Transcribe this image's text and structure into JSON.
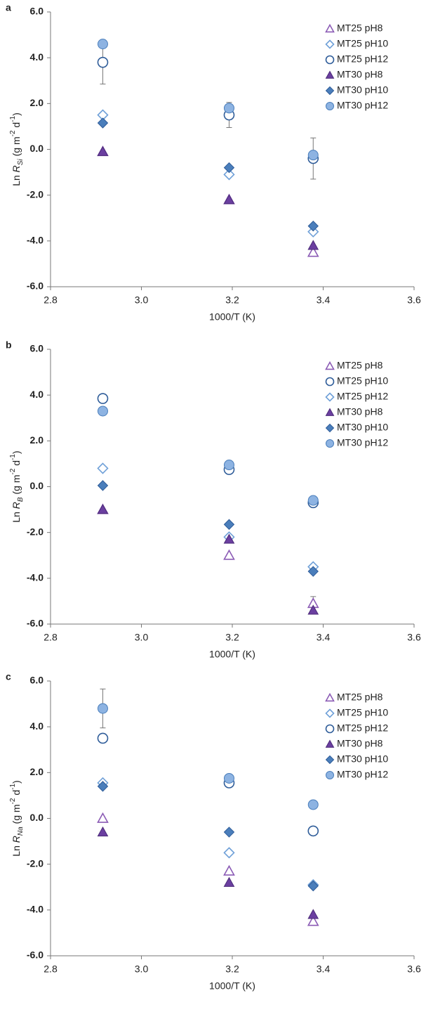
{
  "chart_data": [
    {
      "type": "scatter",
      "panel": "a",
      "xlabel": "1000/T (K)",
      "ylabel": [
        "Ln ",
        "R",
        "Si",
        " (g m",
        "-2",
        " d",
        "-1",
        ")"
      ],
      "x": [
        2.915,
        3.193,
        3.378
      ],
      "xlim": [
        2.8,
        3.6
      ],
      "xticks": [
        2.8,
        {
          "value": 3.0,
          "label": "3.0"
        },
        3.2,
        3.4,
        3.6
      ],
      "ylim": [
        -6,
        6
      ],
      "yticks": [
        {
          "value": -6,
          "label": "-6.0"
        },
        {
          "value": -4,
          "label": "-4.0"
        },
        {
          "value": -2,
          "label": "-2.0"
        },
        {
          "value": 0,
          "label": "0.0"
        },
        {
          "value": 2,
          "label": "2.0"
        },
        {
          "value": 4,
          "label": "4.0"
        },
        {
          "value": 6,
          "label": "6.0"
        }
      ],
      "legend": "upper right",
      "series": [
        {
          "name": "MT25 pH8",
          "color": "#8b5bb5",
          "marker": "triangle",
          "filled": false,
          "values": [
            -0.1,
            -2.2,
            -4.5
          ]
        },
        {
          "name": "MT25 pH10",
          "color": "#6fa0d8",
          "marker": "diamond",
          "filled": false,
          "values": [
            1.5,
            -1.1,
            -3.6
          ]
        },
        {
          "name": "MT25 pH12",
          "color": "#2e5c99",
          "marker": "circle",
          "filled": false,
          "values": [
            3.8,
            1.5,
            -0.4
          ],
          "errors": [
            0.95,
            0.55,
            0.9
          ]
        },
        {
          "name": "MT30 pH8",
          "color": "#6b3fa0",
          "marker": "triangle",
          "filled": true,
          "values": [
            -0.1,
            -2.2,
            -4.2
          ]
        },
        {
          "name": "MT30 pH10",
          "color": "#4a7ebb",
          "marker": "diamond",
          "filled": true,
          "values": [
            1.15,
            -0.8,
            -3.35
          ]
        },
        {
          "name": "MT30 pH12",
          "color": "#8db3e2",
          "marker": "circle",
          "filled": true,
          "values": [
            4.6,
            1.8,
            -0.25
          ]
        }
      ]
    },
    {
      "type": "scatter",
      "panel": "b",
      "xlabel": "1000/T (K)",
      "ylabel": [
        "Ln ",
        "R",
        "B",
        " (g m",
        "-2",
        " d",
        "-1",
        ")"
      ],
      "x": [
        2.915,
        3.193,
        3.378
      ],
      "xlim": [
        2.8,
        3.6
      ],
      "xticks": [
        2.8,
        {
          "value": 3.0,
          "label": "3.0"
        },
        3.2,
        3.4,
        3.6
      ],
      "ylim": [
        -6,
        6
      ],
      "yticks": [
        {
          "value": -6,
          "label": "-6.0"
        },
        {
          "value": -4,
          "label": "-4.0"
        },
        {
          "value": -2,
          "label": "-2.0"
        },
        {
          "value": 0,
          "label": "0.0"
        },
        {
          "value": 2,
          "label": "2.0"
        },
        {
          "value": 4,
          "label": "4.0"
        },
        {
          "value": 6,
          "label": "6.0"
        }
      ],
      "legend": "upper right",
      "series": [
        {
          "name": "MT25 pH8",
          "color": "#8b5bb5",
          "marker": "triangle",
          "filled": false,
          "values": [
            -1.0,
            -3.0,
            -5.1
          ],
          "errors": [
            null,
            null,
            0.3
          ]
        },
        {
          "name": "MT25 pH10",
          "color": "#2e5c99",
          "marker": "circle",
          "filled": false,
          "values": [
            3.85,
            0.75,
            -0.7
          ]
        },
        {
          "name": "MT25 pH12",
          "color": "#6fa0d8",
          "marker": "diamond",
          "filled": false,
          "values": [
            0.8,
            -2.2,
            -3.5
          ]
        },
        {
          "name": "MT30 pH8",
          "color": "#6b3fa0",
          "marker": "triangle",
          "filled": true,
          "values": [
            -1.0,
            -2.3,
            -5.4
          ]
        },
        {
          "name": "MT30 pH10",
          "color": "#4a7ebb",
          "marker": "diamond",
          "filled": true,
          "values": [
            0.05,
            -1.65,
            -3.7
          ]
        },
        {
          "name": "MT30 pH12",
          "color": "#8db3e2",
          "marker": "circle",
          "filled": true,
          "values": [
            3.3,
            0.95,
            -0.6
          ]
        }
      ]
    },
    {
      "type": "scatter",
      "panel": "c",
      "xlabel": "1000/T (K)",
      "ylabel": [
        "Ln ",
        "R",
        "Na",
        " (g m",
        "-2",
        " d",
        "-1",
        ")"
      ],
      "x": [
        2.915,
        3.193,
        3.378
      ],
      "xlim": [
        2.8,
        3.6
      ],
      "xticks": [
        2.8,
        {
          "value": 3.0,
          "label": "3.0"
        },
        3.2,
        3.4,
        3.6
      ],
      "ylim": [
        -6,
        6
      ],
      "yticks": [
        {
          "value": -6,
          "label": "-6.0"
        },
        {
          "value": -4,
          "label": "-4.0"
        },
        {
          "value": -2,
          "label": "-2.0"
        },
        {
          "value": 0,
          "label": "0.0"
        },
        {
          "value": 2,
          "label": "2.0"
        },
        {
          "value": 4,
          "label": "4.0"
        },
        {
          "value": 6,
          "label": "6.0"
        }
      ],
      "legend": "upper right",
      "series": [
        {
          "name": "MT25 pH8",
          "color": "#8b5bb5",
          "marker": "triangle",
          "filled": false,
          "values": [
            0.0,
            -2.3,
            -4.5
          ]
        },
        {
          "name": "MT25 pH10",
          "color": "#6fa0d8",
          "marker": "diamond",
          "filled": false,
          "values": [
            1.55,
            -1.5,
            -2.9
          ]
        },
        {
          "name": "MT25 pH12",
          "color": "#2e5c99",
          "marker": "circle",
          "filled": false,
          "values": [
            3.5,
            1.55,
            -0.55
          ]
        },
        {
          "name": "MT30 pH8",
          "color": "#6b3fa0",
          "marker": "triangle",
          "filled": true,
          "values": [
            -0.6,
            -2.8,
            -4.2
          ]
        },
        {
          "name": "MT30 pH10",
          "color": "#4a7ebb",
          "marker": "diamond",
          "filled": true,
          "values": [
            1.4,
            -0.6,
            -2.95
          ]
        },
        {
          "name": "MT30 pH12",
          "color": "#8db3e2",
          "marker": "circle",
          "filled": true,
          "values": [
            4.8,
            1.75,
            0.6
          ],
          "errors": [
            0.85,
            null,
            null
          ]
        }
      ]
    }
  ]
}
